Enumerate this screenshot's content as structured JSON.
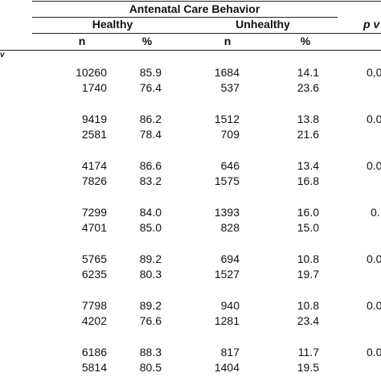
{
  "table": {
    "title": "Antenatal Care Behavior",
    "groups": [
      "Healthy",
      "Unhealthy"
    ],
    "pcol_head": "p v",
    "subheaders": [
      "n",
      "%",
      "n",
      "%"
    ],
    "left_fragment": "v",
    "groups_rows": [
      {
        "rows": [
          {
            "n1": "10260",
            "p1": "85.9",
            "n2": "1684",
            "p2": "14.1"
          },
          {
            "n1": "1740",
            "p1": "76.4",
            "n2": "537",
            "p2": "23.6"
          }
        ],
        "pval": "0,0"
      },
      {
        "rows": [
          {
            "n1": "9419",
            "p1": "86.2",
            "n2": "1512",
            "p2": "13.8"
          },
          {
            "n1": "2581",
            "p1": "78.4",
            "n2": "709",
            "p2": "21.6"
          }
        ],
        "pval": "0.0"
      },
      {
        "rows": [
          {
            "n1": "4174",
            "p1": "86.6",
            "n2": "646",
            "p2": "13.4"
          },
          {
            "n1": "7826",
            "p1": "83.2",
            "n2": "1575",
            "p2": "16.8"
          }
        ],
        "pval": "0.0"
      },
      {
        "rows": [
          {
            "n1": "7299",
            "p1": "84.0",
            "n2": "1393",
            "p2": "16.0"
          },
          {
            "n1": "4701",
            "p1": "85.0",
            "n2": "828",
            "p2": "15.0"
          }
        ],
        "pval": "0."
      },
      {
        "rows": [
          {
            "n1": "5765",
            "p1": "89.2",
            "n2": "694",
            "p2": "10.8"
          },
          {
            "n1": "6235",
            "p1": "80.3",
            "n2": "1527",
            "p2": "19.7"
          }
        ],
        "pval": "0.0"
      },
      {
        "rows": [
          {
            "n1": "7798",
            "p1": "89.2",
            "n2": "940",
            "p2": "10.8"
          },
          {
            "n1": "4202",
            "p1": "76.6",
            "n2": "1281",
            "p2": "23.4"
          }
        ],
        "pval": "0.0"
      },
      {
        "rows": [
          {
            "n1": "6186",
            "p1": "88.3",
            "n2": "817",
            "p2": "11.7"
          },
          {
            "n1": "5814",
            "p1": "80.5",
            "n2": "1404",
            "p2": "19.5"
          }
        ],
        "pval": "0.0"
      }
    ]
  }
}
